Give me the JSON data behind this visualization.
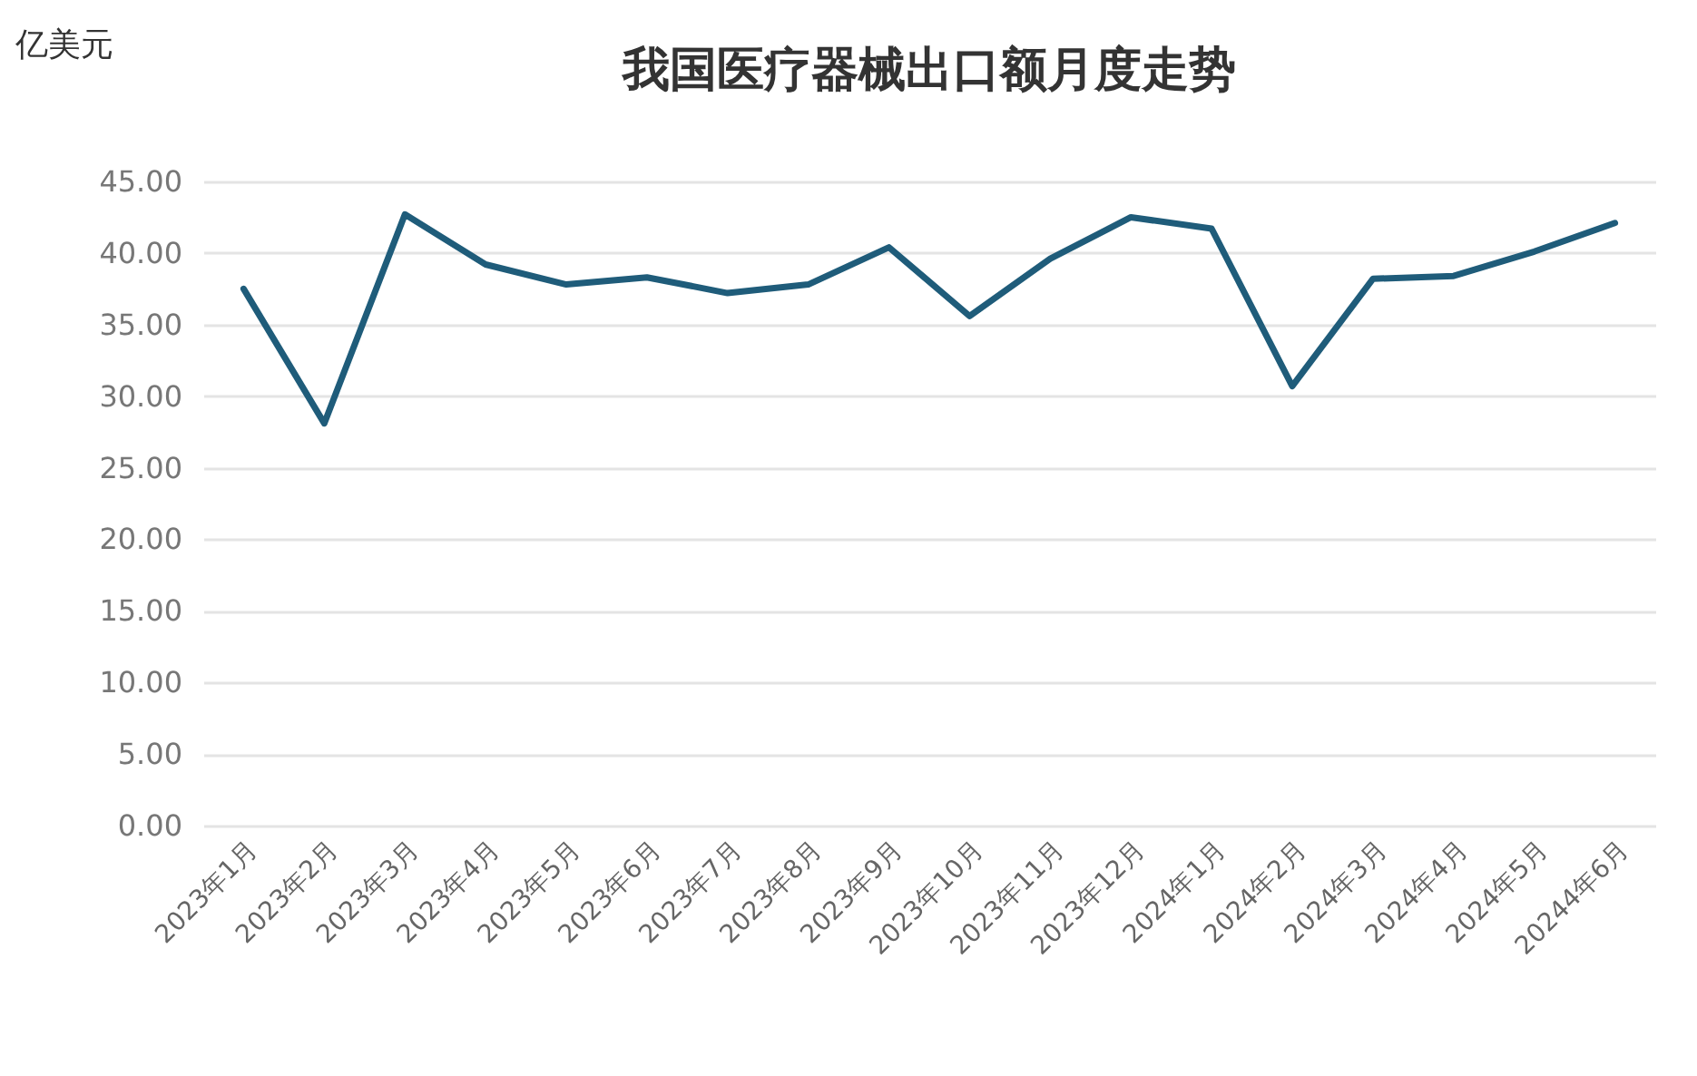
{
  "chart_data": {
    "type": "line",
    "title": "我国医疗器械出口额月度走势",
    "ylabel": "亿美元",
    "categories": [
      "2023年1月",
      "2023年2月",
      "2023年3月",
      "2023年4月",
      "2023年5月",
      "2023年6月",
      "2023年7月",
      "2023年8月",
      "2023年9月",
      "2023年10月",
      "2023年11月",
      "2023年12月",
      "2024年1月",
      "2024年2月",
      "2024年3月",
      "2024年4月",
      "2024年5月",
      "20244年6月"
    ],
    "series": [
      {
        "color": "#1f5c7a",
        "values": [
          37.5,
          28.1,
          42.7,
          39.2,
          37.8,
          38.3,
          37.2,
          37.8,
          40.4,
          35.6,
          39.6,
          42.5,
          41.7,
          30.7,
          38.2,
          38.4,
          40.1,
          42.1
        ]
      }
    ],
    "ylim": [
      0,
      45
    ],
    "yticks": [
      {
        "value": 0,
        "label": "0.00"
      },
      {
        "value": 5,
        "label": "5.00"
      },
      {
        "value": 10,
        "label": "10.00"
      },
      {
        "value": 15,
        "label": "15.00"
      },
      {
        "value": 20,
        "label": "20.00"
      },
      {
        "value": 25,
        "label": "25.00"
      },
      {
        "value": 30,
        "label": "30.00"
      },
      {
        "value": 35,
        "label": "35.00"
      },
      {
        "value": 40,
        "label": "40.00"
      },
      {
        "value": 45,
        "label": "45.00"
      }
    ],
    "grid": "y",
    "marker": "none",
    "line_style": "solid"
  }
}
